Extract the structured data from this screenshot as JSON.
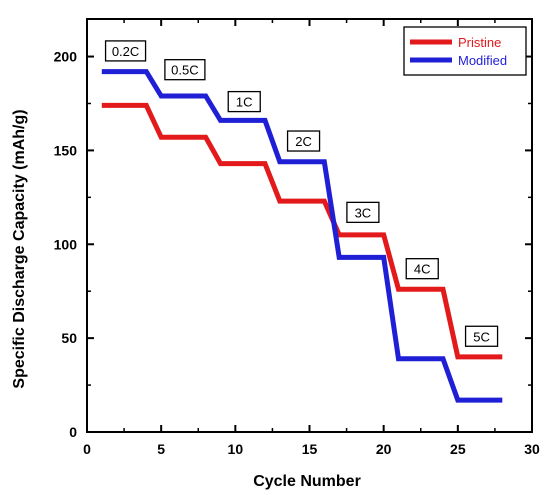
{
  "chart_data": {
    "type": "line",
    "title": "",
    "xlabel": "Cycle Number",
    "ylabel": "Specific Discharge Capacity (mAh/g)",
    "xlim": [
      0,
      30
    ],
    "ylim": [
      0,
      220
    ],
    "x_ticks": [
      "0",
      "5",
      "10",
      "15",
      "20",
      "25",
      "30"
    ],
    "y_ticks": [
      "0",
      "50",
      "100",
      "150",
      "200"
    ],
    "grid": false,
    "legend_position": "top-right",
    "series": [
      {
        "name": "Pristine",
        "color": "#e31a1c",
        "x": [
          1,
          4,
          5,
          8,
          9,
          12,
          13,
          16,
          17,
          20,
          21,
          24,
          25,
          28
        ],
        "y": [
          174,
          174,
          157,
          157,
          143,
          143,
          123,
          123,
          105,
          105,
          76,
          76,
          40,
          40
        ]
      },
      {
        "name": "Modified",
        "color": "#1f1fd6",
        "x": [
          1,
          4,
          5,
          8,
          9,
          12,
          13,
          16,
          17,
          20,
          21,
          24,
          25,
          28
        ],
        "y": [
          192,
          192,
          179,
          179,
          166,
          166,
          144,
          144,
          93,
          93,
          39,
          39,
          17,
          17
        ]
      }
    ],
    "annotations": [
      {
        "text": "0.2C",
        "x": 2.6,
        "y": 203
      },
      {
        "text": "0.5C",
        "x": 6.6,
        "y": 193
      },
      {
        "text": "1C",
        "x": 10.6,
        "y": 176
      },
      {
        "text": "2C",
        "x": 14.6,
        "y": 155
      },
      {
        "text": "3C",
        "x": 18.6,
        "y": 117
      },
      {
        "text": "4C",
        "x": 22.6,
        "y": 87
      },
      {
        "text": "5C",
        "x": 26.6,
        "y": 51
      }
    ]
  }
}
